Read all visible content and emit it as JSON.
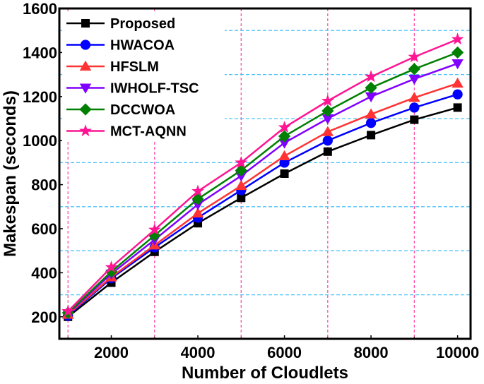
{
  "chart_data": {
    "type": "line",
    "title": "",
    "xlabel": "Number of Cloudlets",
    "ylabel": "Makespan (seconds)",
    "x": [
      1000,
      2000,
      3000,
      4000,
      5000,
      6000,
      7000,
      8000,
      9000,
      10000
    ],
    "xlim": [
      800,
      10300
    ],
    "ylim": [
      100,
      1600
    ],
    "xticks": [
      2000,
      4000,
      6000,
      8000,
      10000
    ],
    "xtick_labels": [
      "2000",
      "4000",
      "6000",
      "8000",
      "10000"
    ],
    "yticks": [
      200,
      400,
      600,
      800,
      1000,
      1200,
      1400,
      1600
    ],
    "ytick_labels": [
      "200",
      "400",
      "600",
      "800",
      "1000",
      "1200",
      "1400",
      "1600"
    ],
    "grid": {
      "vertical": {
        "values": [
          1000,
          3000,
          5000,
          7000,
          9000
        ],
        "color": "#ff4fa8",
        "style": "dashed"
      },
      "horizontal": {
        "values": [
          300,
          500,
          700,
          900,
          1100,
          1300,
          1500
        ],
        "color": "#4fc3f7",
        "style": "dashed"
      }
    },
    "legend_position": "upper left",
    "series": [
      {
        "name": "Proposed",
        "color": "#000000",
        "marker": "square",
        "values": [
          200,
          355,
          495,
          625,
          740,
          850,
          950,
          1025,
          1095,
          1150
        ]
      },
      {
        "name": "HWACOA",
        "color": "#0000ff",
        "marker": "circle",
        "values": [
          205,
          375,
          515,
          650,
          775,
          900,
          1000,
          1080,
          1150,
          1210
        ]
      },
      {
        "name": "HFSLM",
        "color": "#ff3333",
        "marker": "triangle-up",
        "values": [
          210,
          380,
          525,
          670,
          795,
          930,
          1040,
          1120,
          1195,
          1260
        ]
      },
      {
        "name": "IWHOLF-TSC",
        "color": "#8000ff",
        "marker": "triangle-down",
        "values": [
          215,
          395,
          550,
          710,
          840,
          990,
          1100,
          1200,
          1280,
          1350
        ]
      },
      {
        "name": "DCCWOA",
        "color": "#008000",
        "marker": "diamond",
        "values": [
          218,
          405,
          570,
          735,
          865,
          1020,
          1135,
          1240,
          1325,
          1400
        ]
      },
      {
        "name": "MCT-AQNN",
        "color": "#ff1493",
        "marker": "star",
        "values": [
          225,
          425,
          595,
          770,
          900,
          1060,
          1180,
          1290,
          1380,
          1460
        ]
      }
    ]
  }
}
